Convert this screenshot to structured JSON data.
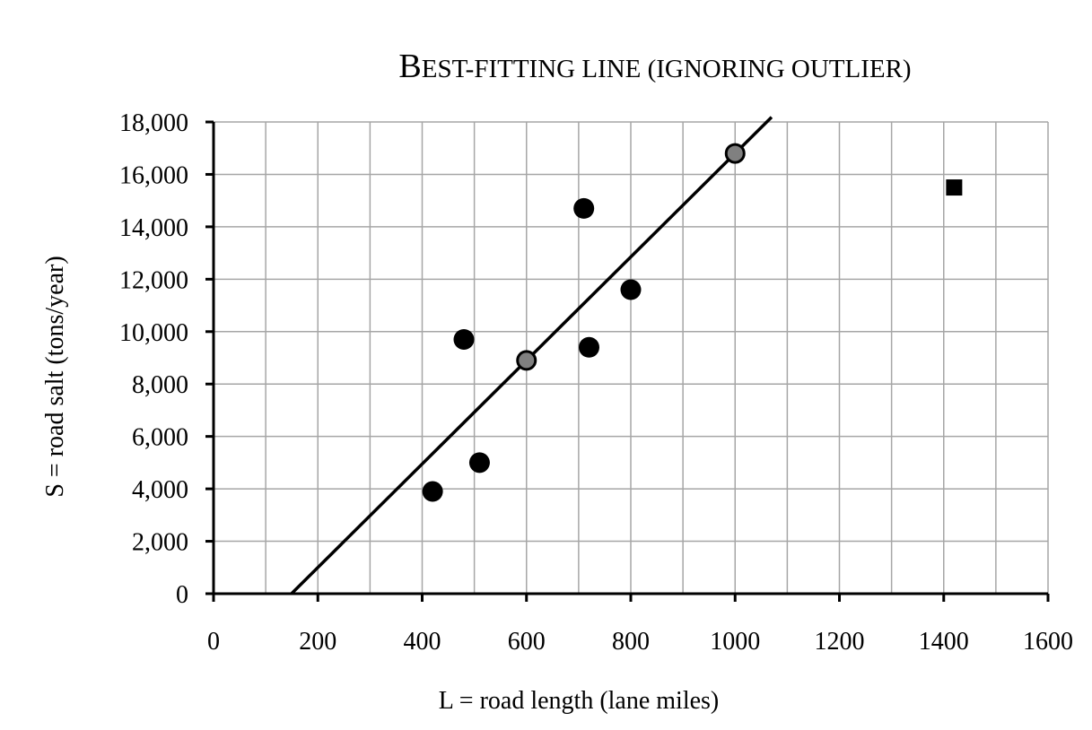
{
  "chart_data": {
    "type": "scatter",
    "title_lead": "B",
    "title_rest": "EST-FITTING LINE (IGNORING OUTLIER)",
    "xlabel": "L = road length (lane miles)",
    "ylabel": "S = road salt (tons/year)",
    "xlim": [
      0,
      1600
    ],
    "ylim": [
      0,
      18000
    ],
    "x_ticks": [
      0,
      200,
      400,
      600,
      800,
      1000,
      1200,
      1400,
      1600
    ],
    "x_tick_labels": [
      "0",
      "200",
      "400",
      "600",
      "800",
      "1000",
      "1200",
      "1400",
      "1600"
    ],
    "y_ticks": [
      0,
      2000,
      4000,
      6000,
      8000,
      10000,
      12000,
      14000,
      16000,
      18000
    ],
    "y_tick_labels": [
      "0",
      "2,000",
      "4,000",
      "6,000",
      "8,000",
      "10,000",
      "12,000",
      "14,000",
      "16,000",
      "18,000"
    ],
    "grid": true,
    "series": [
      {
        "marker": "circle",
        "color": "#000000",
        "points": [
          {
            "x": 420,
            "y": 3900
          },
          {
            "x": 480,
            "y": 9700
          },
          {
            "x": 510,
            "y": 5000
          },
          {
            "x": 710,
            "y": 14700
          },
          {
            "x": 720,
            "y": 9400
          },
          {
            "x": 800,
            "y": 11600
          }
        ]
      },
      {
        "marker": "circle",
        "color": "#808080",
        "points": [
          {
            "x": 600,
            "y": 8900
          },
          {
            "x": 1000,
            "y": 16800
          }
        ]
      },
      {
        "marker": "square",
        "color": "#000000",
        "points": [
          {
            "x": 1420,
            "y": 15500
          }
        ]
      }
    ],
    "fit_line": {
      "points": [
        {
          "x": 600,
          "y": 8900
        },
        {
          "x": 1000,
          "y": 16800
        }
      ],
      "x_range": [
        150,
        1070
      ],
      "color": "#000000"
    }
  }
}
